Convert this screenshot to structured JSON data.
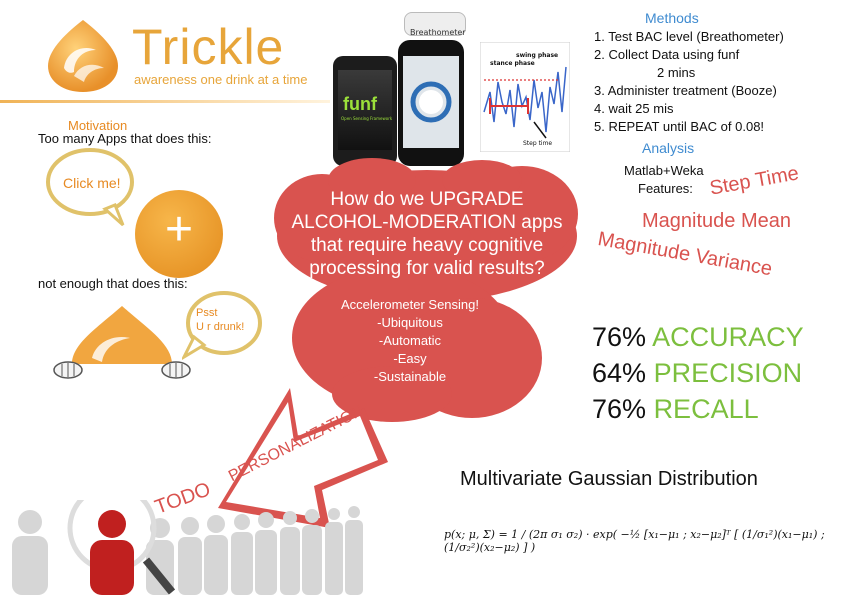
{
  "header": {
    "title": "Trickle",
    "tagline": "awareness one drink at a time"
  },
  "motivation": {
    "heading": "Motivation",
    "line1": "Too many Apps that does this:",
    "bubble1": "Click me!",
    "plus": "+",
    "line2": "not enough that does this:",
    "bubble2_line1": "Psst",
    "bubble2_line2": "U r drunk!"
  },
  "devices": {
    "phone_brand": "funf",
    "phone_sub": "Open Sensing Framework",
    "breathometer_label": "Breathometer",
    "figure_labels": {
      "stance": "stance phase",
      "swing": "swing phase",
      "step": "Step time"
    }
  },
  "methods": {
    "heading": "Methods",
    "steps": [
      "1. Test BAC level (Breathometer)",
      "2. Collect Data using funf",
      "2 mins",
      "3. Administer treatment (Booze)",
      "4. wait 25 mis",
      "5. REPEAT until BAC of 0.08!"
    ]
  },
  "analysis": {
    "heading": "Analysis",
    "tool": "Matlab+Weka",
    "features_label": "Features:",
    "feature1": "Step Time",
    "feature2": "Magnitude Mean",
    "feature3": "Magnitude Variance"
  },
  "cloud": {
    "question": [
      "How do we UPGRADE",
      "ALCOHOL-MODERATION apps",
      "that require heavy cognitive",
      "processing for valid results?"
    ],
    "answer": [
      "Accelerometer Sensing!",
      "-Ubiquitous",
      "-Automatic",
      "-Easy",
      "-Sustainable"
    ]
  },
  "results": [
    {
      "value": "76%",
      "label": "ACCURACY"
    },
    {
      "value": "64%",
      "label": "PRECISION"
    },
    {
      "value": "76%",
      "label": "RECALL"
    }
  ],
  "arrow": {
    "label": "PERSONALIZATION",
    "todo": "TODO"
  },
  "formula": {
    "title": "Multivariate Gaussian Distribution",
    "equation": "p(x; μ, Σ) = 1 / (2π σ₁ σ₂) · exp( −½ [x₁−μ₁ ; x₂−μ₂]ᵀ [ (1/σ₁²)(x₁−μ₁) ; (1/σ₂²)(x₂−μ₂) ] )"
  },
  "colors": {
    "brand_orange": "#e7a53a",
    "accent_red": "#d9534f",
    "method_blue": "#3f8bd0",
    "result_green": "#7cbf3e"
  }
}
